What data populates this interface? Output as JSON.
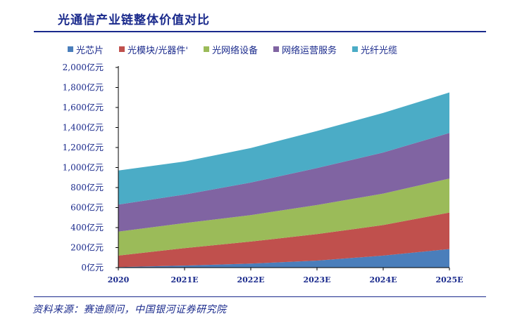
{
  "title": "光通信产业链整体价值对比",
  "source": "资料来源：赛迪顾问，中国银河证券研究院",
  "chart_data": {
    "type": "area",
    "stacked": true,
    "categories": [
      "2020",
      "2021E",
      "2022E",
      "2023E",
      "2024E",
      "2025E"
    ],
    "ylim": [
      0,
      2000
    ],
    "yticks": [
      0,
      200,
      400,
      600,
      800,
      1000,
      1200,
      1400,
      1600,
      1800,
      2000
    ],
    "ytick_labels": [
      "0亿元",
      "200亿元",
      "400亿元",
      "600亿元",
      "800亿元",
      "1,000亿元",
      "1,200亿元",
      "1,400亿元",
      "1,600亿元",
      "1,800亿元",
      "2,000亿元"
    ],
    "legend_position": "top",
    "series": [
      {
        "name": "光芯片",
        "color": "#4a7ebb",
        "values": [
          5,
          20,
          40,
          70,
          120,
          185
        ]
      },
      {
        "name": "光模块/光器件'",
        "color": "#c0504d",
        "values": [
          115,
          175,
          220,
          265,
          305,
          365
        ]
      },
      {
        "name": "光网络设备",
        "color": "#9bbb59",
        "values": [
          240,
          250,
          265,
          290,
          315,
          340
        ]
      },
      {
        "name": "网络运营服务",
        "color": "#8064a2",
        "values": [
          270,
          285,
          325,
          370,
          410,
          455
        ]
      },
      {
        "name": "光纤光缆",
        "color": "#4bacc6",
        "values": [
          340,
          330,
          345,
          370,
          395,
          405
        ]
      }
    ]
  }
}
